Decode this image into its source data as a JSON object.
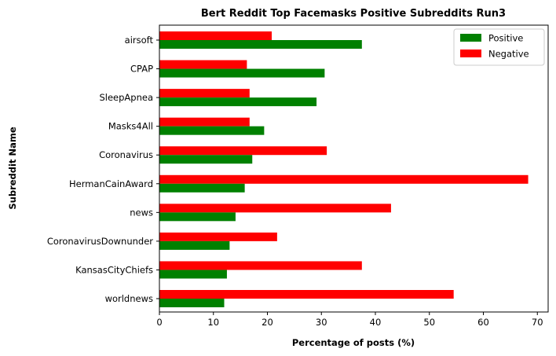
{
  "chart_data": {
    "type": "bar",
    "orientation": "horizontal",
    "title": "Bert Reddit Top Facemasks Positive Subreddits Run3",
    "xlabel": "Percentage of posts (%)",
    "ylabel": "Subreddit Name",
    "xlim": [
      0,
      72
    ],
    "xticks": [
      0,
      10,
      20,
      30,
      40,
      50,
      60,
      70
    ],
    "grid": false,
    "legend_position": "top-right",
    "categories": [
      "airsoft",
      "CPAP",
      "SleepApnea",
      "Masks4All",
      "Coronavirus",
      "HermanCainAward",
      "news",
      "CoronavirusDownunder",
      "KansasCityChiefs",
      "worldnews"
    ],
    "series": [
      {
        "name": "Positive",
        "color": "#008000",
        "values": [
          37.5,
          30.6,
          29.1,
          19.4,
          17.2,
          15.8,
          14.1,
          13.0,
          12.5,
          12.0
        ]
      },
      {
        "name": "Negative",
        "color": "#ff0000",
        "values": [
          20.8,
          16.2,
          16.7,
          16.7,
          31.0,
          68.3,
          42.9,
          21.8,
          37.5,
          54.5
        ]
      }
    ]
  }
}
